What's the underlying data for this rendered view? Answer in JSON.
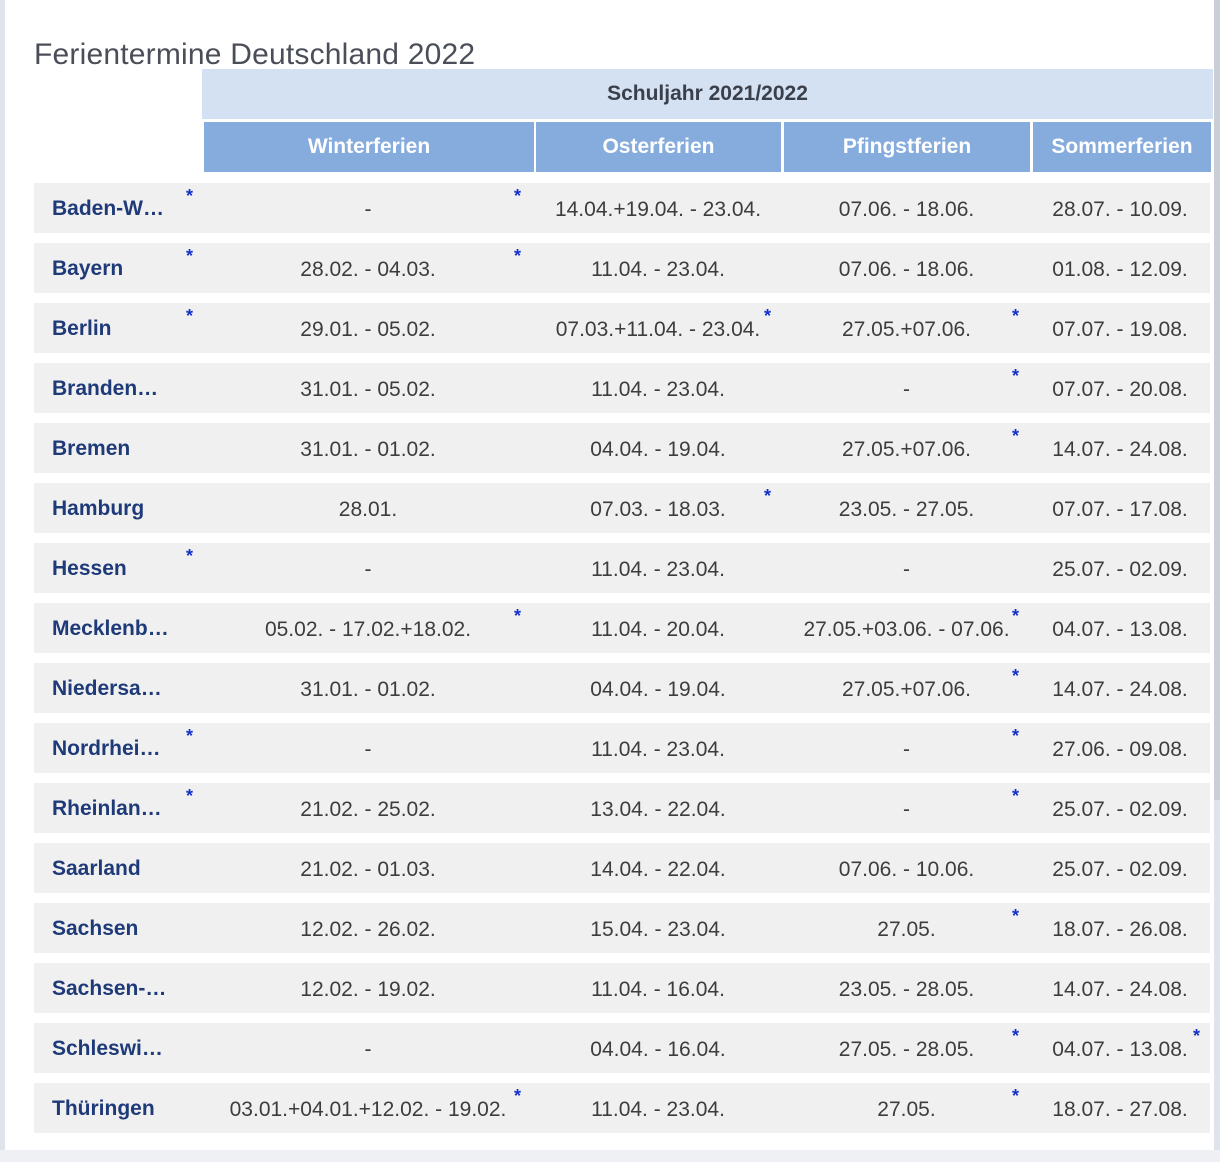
{
  "title": "Ferientermine Deutschland 2022",
  "school_year": "Schuljahr 2021/2022",
  "columns": [
    "Winterferien",
    "Osterferien",
    "Pfingstferien",
    "Sommerferien"
  ],
  "marker": "*",
  "colors": {
    "column_header": "#86acde",
    "year_header": "#d3e1f3",
    "row_bg": "#f0f0f0",
    "state_text": "#1e3a78",
    "marker": "#1230c8"
  },
  "rows": [
    {
      "state": "Baden-W…",
      "winter": "-",
      "oster": "14.04.+19.04. - 23.04.",
      "pfingst": "07.06. - 18.06.",
      "sommer": "28.07. - 10.09.",
      "flags": {
        "state": true,
        "winter": true,
        "oster": false,
        "pfingst": false,
        "sommer": false
      }
    },
    {
      "state": "Bayern",
      "winter": "28.02. - 04.03.",
      "oster": "11.04. - 23.04.",
      "pfingst": "07.06. - 18.06.",
      "sommer": "01.08. - 12.09.",
      "flags": {
        "state": true,
        "winter": true,
        "oster": false,
        "pfingst": false,
        "sommer": false
      }
    },
    {
      "state": "Berlin",
      "winter": "29.01. - 05.02.",
      "oster": "07.03.+11.04. - 23.04.",
      "pfingst": "27.05.+07.06.",
      "sommer": "07.07. - 19.08.",
      "flags": {
        "state": true,
        "winter": false,
        "oster": true,
        "pfingst": true,
        "sommer": false
      }
    },
    {
      "state": "Branden…",
      "winter": "31.01. - 05.02.",
      "oster": "11.04. - 23.04.",
      "pfingst": "-",
      "sommer": "07.07. - 20.08.",
      "flags": {
        "state": false,
        "winter": false,
        "oster": false,
        "pfingst": true,
        "sommer": false
      }
    },
    {
      "state": "Bremen",
      "winter": "31.01. - 01.02.",
      "oster": "04.04. - 19.04.",
      "pfingst": "27.05.+07.06.",
      "sommer": "14.07. - 24.08.",
      "flags": {
        "state": false,
        "winter": false,
        "oster": false,
        "pfingst": true,
        "sommer": false
      }
    },
    {
      "state": "Hamburg",
      "winter": "28.01.",
      "oster": "07.03. - 18.03.",
      "pfingst": "23.05. - 27.05.",
      "sommer": "07.07. - 17.08.",
      "flags": {
        "state": false,
        "winter": false,
        "oster": true,
        "pfingst": false,
        "sommer": false
      }
    },
    {
      "state": "Hessen",
      "winter": "-",
      "oster": "11.04. - 23.04.",
      "pfingst": "-",
      "sommer": "25.07. - 02.09.",
      "flags": {
        "state": true,
        "winter": false,
        "oster": false,
        "pfingst": false,
        "sommer": false
      }
    },
    {
      "state": "Mecklenb…",
      "winter": "05.02. - 17.02.+18.02.",
      "oster": "11.04. - 20.04.",
      "pfingst": "27.05.+03.06. - 07.06.",
      "sommer": "04.07. - 13.08.",
      "flags": {
        "state": false,
        "winter": true,
        "oster": false,
        "pfingst": true,
        "sommer": false
      }
    },
    {
      "state": "Niedersa…",
      "winter": "31.01. - 01.02.",
      "oster": "04.04. - 19.04.",
      "pfingst": "27.05.+07.06.",
      "sommer": "14.07. - 24.08.",
      "flags": {
        "state": false,
        "winter": false,
        "oster": false,
        "pfingst": true,
        "sommer": false
      }
    },
    {
      "state": "Nordrhei…",
      "winter": "-",
      "oster": "11.04. - 23.04.",
      "pfingst": "-",
      "sommer": "27.06. - 09.08.",
      "flags": {
        "state": true,
        "winter": false,
        "oster": false,
        "pfingst": true,
        "sommer": false
      }
    },
    {
      "state": "Rheinlan…",
      "winter": "21.02. - 25.02.",
      "oster": "13.04. - 22.04.",
      "pfingst": "-",
      "sommer": "25.07. - 02.09.",
      "flags": {
        "state": true,
        "winter": false,
        "oster": false,
        "pfingst": true,
        "sommer": false
      }
    },
    {
      "state": "Saarland",
      "winter": "21.02. - 01.03.",
      "oster": "14.04. - 22.04.",
      "pfingst": "07.06. - 10.06.",
      "sommer": "25.07. - 02.09.",
      "flags": {
        "state": false,
        "winter": false,
        "oster": false,
        "pfingst": false,
        "sommer": false
      }
    },
    {
      "state": "Sachsen",
      "winter": "12.02. - 26.02.",
      "oster": "15.04. - 23.04.",
      "pfingst": "27.05.",
      "sommer": "18.07. - 26.08.",
      "flags": {
        "state": false,
        "winter": false,
        "oster": false,
        "pfingst": true,
        "sommer": false
      }
    },
    {
      "state": "Sachsen-…",
      "winter": "12.02. - 19.02.",
      "oster": "11.04. - 16.04.",
      "pfingst": "23.05. - 28.05.",
      "sommer": "14.07. - 24.08.",
      "flags": {
        "state": false,
        "winter": false,
        "oster": false,
        "pfingst": false,
        "sommer": false
      }
    },
    {
      "state": "Schleswi…",
      "winter": "-",
      "oster": "04.04. - 16.04.",
      "pfingst": "27.05. - 28.05.",
      "sommer": "04.07. - 13.08.",
      "flags": {
        "state": false,
        "winter": false,
        "oster": false,
        "pfingst": true,
        "sommer": true
      }
    },
    {
      "state": "Thüringen",
      "winter": "03.01.+04.01.+12.02. - 19.02.",
      "oster": "11.04. - 23.04.",
      "pfingst": "27.05.",
      "sommer": "18.07. - 27.08.",
      "flags": {
        "state": false,
        "winter": true,
        "oster": false,
        "pfingst": true,
        "sommer": false
      }
    }
  ]
}
